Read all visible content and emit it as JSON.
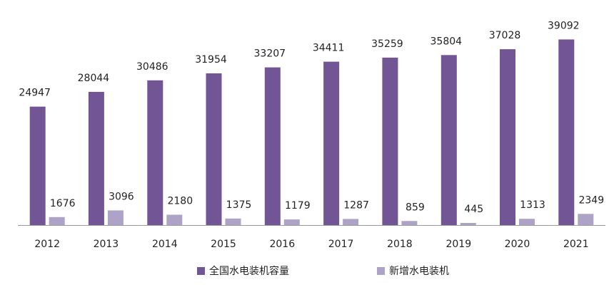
{
  "chart_data": {
    "type": "bar",
    "title": "",
    "xlabel": "",
    "ylabel": "",
    "categories": [
      "2012",
      "2013",
      "2014",
      "2015",
      "2016",
      "2017",
      "2018",
      "2019",
      "2020",
      "2021"
    ],
    "series": [
      {
        "name": "全国水电装机容量",
        "color": "#715594",
        "values": [
          24947,
          28044,
          30486,
          31954,
          33207,
          34411,
          35259,
          35804,
          37028,
          39092
        ],
        "labels": [
          "24947",
          "28044",
          "30486",
          "31954",
          "33207",
          "34411",
          "35259",
          "35804",
          "37028",
          "39092"
        ]
      },
      {
        "name": "新增水电装机",
        "color": "#ada3c6",
        "values": [
          1676,
          3096,
          2180,
          1375,
          1179,
          1287,
          859,
          445,
          1313,
          2349
        ],
        "labels": [
          "1676",
          "3096",
          "2180",
          "1375",
          "1179",
          "1287",
          "859",
          "445",
          "1313",
          "2349"
        ]
      }
    ],
    "ylim": [
      0,
      40500
    ],
    "grid": false,
    "legend_position": "bottom-center",
    "axis_color": "#999999"
  }
}
